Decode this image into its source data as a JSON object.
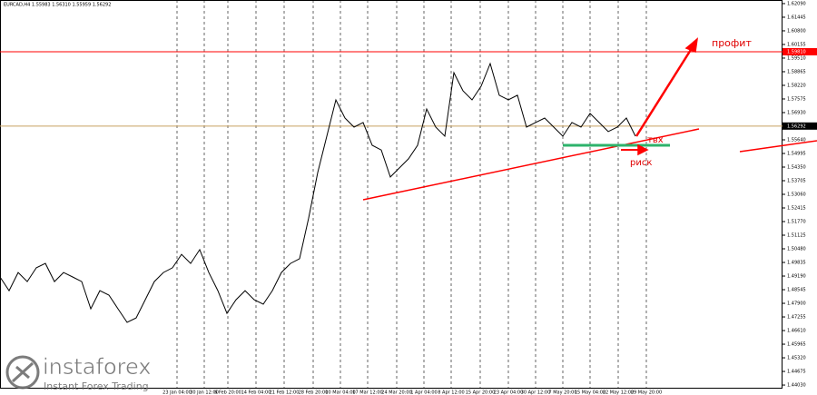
{
  "chart_data": {
    "type": "line",
    "title": "EURCAD,H4  1.55983 1.56310 1.55959 1.56292",
    "x": [
      0,
      1,
      2,
      3,
      4,
      5,
      6,
      7,
      8,
      9,
      10,
      11,
      12,
      13,
      14,
      15,
      16,
      17,
      18,
      19,
      20,
      21,
      22,
      23,
      24,
      25,
      26,
      27,
      28,
      29,
      30,
      31,
      32,
      33,
      34,
      35,
      36,
      37,
      38,
      39,
      40,
      41,
      42,
      43,
      44,
      45,
      46,
      47,
      48,
      49,
      50,
      51,
      52,
      53,
      54,
      55,
      56,
      57,
      58,
      59,
      60,
      61,
      62,
      63,
      64,
      65,
      66,
      67,
      68,
      69,
      70
    ],
    "values": [
      1.4915,
      1.485,
      1.4936,
      1.4893,
      1.4958,
      1.4979,
      1.4893,
      1.4936,
      1.4915,
      1.4893,
      1.4764,
      1.485,
      1.4829,
      1.4764,
      1.47,
      1.4721,
      1.4807,
      1.4893,
      1.4936,
      1.4958,
      1.5022,
      1.4979,
      1.5044,
      1.4936,
      1.485,
      1.4743,
      1.4807,
      1.485,
      1.4807,
      1.4786,
      1.485,
      1.4936,
      1.4979,
      1.5001,
      1.5194,
      1.5409,
      1.5581,
      1.5753,
      1.5667,
      1.5624,
      1.5646,
      1.5538,
      1.5516,
      1.5388,
      1.5431,
      1.5474,
      1.5538,
      1.571,
      1.5624,
      1.5581,
      1.5882,
      1.5796,
      1.5753,
      1.5818,
      1.5925,
      1.5775,
      1.5753,
      1.5775,
      1.5624,
      1.5646,
      1.5667,
      1.5624,
      1.5581,
      1.5646,
      1.5624,
      1.5689,
      1.5646,
      1.5603,
      1.5624,
      1.5667,
      1.5581
    ],
    "color": "#000000",
    "xlim": [
      0,
      86.2
    ],
    "xticks": [
      {
        "value": 19.5,
        "label": "23 Jan 04:00"
      },
      {
        "value": 22.5,
        "label": "30 Jan 12:00"
      },
      {
        "value": 25.1,
        "label": "6 Feb 20:00"
      },
      {
        "value": 28.2,
        "label": "14 Feb 04:00"
      },
      {
        "value": 31.3,
        "label": "21 Feb 12:00"
      },
      {
        "value": 34.5,
        "label": "28 Feb 20:00"
      },
      {
        "value": 37.5,
        "label": "10 Mar 04:00"
      },
      {
        "value": 40.5,
        "label": "17 Mar 12:00"
      },
      {
        "value": 43.7,
        "label": "24 Mar 20:00"
      },
      {
        "value": 46.7,
        "label": "1 Apr 04:00"
      },
      {
        "value": 49.7,
        "label": "8 Apr 12:00"
      },
      {
        "value": 52.9,
        "label": "15 Apr 20:00"
      },
      {
        "value": 56,
        "label": "23 Apr 04:00"
      },
      {
        "value": 59,
        "label": "30 Apr 12:00"
      },
      {
        "value": 62,
        "label": "7 May 20:00"
      },
      {
        "value": 65,
        "label": "15 May 04:00"
      },
      {
        "value": 68.1,
        "label": "22 May 12:00"
      },
      {
        "value": 71.2,
        "label": "29 May 20:00"
      }
    ],
    "ylim": [
      1.4386,
      1.6226
    ],
    "yticks": [
      {
        "value": 1.6209,
        "label": "1.62090"
      },
      {
        "value": 1.61445,
        "label": "1.61445"
      },
      {
        "value": 1.608,
        "label": "1.60800"
      },
      {
        "value": 1.60155,
        "label": "1.60155"
      },
      {
        "value": 1.5951,
        "label": "1.59510"
      },
      {
        "value": 1.58865,
        "label": "1.58865"
      },
      {
        "value": 1.5822,
        "label": "1.58220"
      },
      {
        "value": 1.57575,
        "label": "1.57575"
      },
      {
        "value": 1.5693,
        "label": "1.56930"
      },
      {
        "value": 1.5564,
        "label": "1.55640"
      },
      {
        "value": 1.54995,
        "label": "1.54995"
      },
      {
        "value": 1.5435,
        "label": "1.54350"
      },
      {
        "value": 1.53705,
        "label": "1.53705"
      },
      {
        "value": 1.5306,
        "label": "1.53060"
      },
      {
        "value": 1.52415,
        "label": "1.52415"
      },
      {
        "value": 1.5177,
        "label": "1.51770"
      },
      {
        "value": 1.51125,
        "label": "1.51125"
      },
      {
        "value": 1.5048,
        "label": "1.50480"
      },
      {
        "value": 1.49835,
        "label": "1.49835"
      },
      {
        "value": 1.4919,
        "label": "1.49190"
      },
      {
        "value": 1.48545,
        "label": "1.48545"
      },
      {
        "value": 1.479,
        "label": "1.47900"
      },
      {
        "value": 1.47255,
        "label": "1.47255"
      },
      {
        "value": 1.4661,
        "label": "1.46610"
      },
      {
        "value": 1.45965,
        "label": "1.45965"
      },
      {
        "value": 1.4532,
        "label": "1.45320"
      },
      {
        "value": 1.44675,
        "label": "1.44675"
      },
      {
        "value": 1.4403,
        "label": "1.44030"
      }
    ],
    "levels": [
      {
        "value": 1.5981,
        "label": "1.59810",
        "color": "#ff0000",
        "box": "#ff0000"
      },
      {
        "value": 1.56292,
        "label": "1.56292",
        "color": "#c8a060",
        "box": "#000000"
      }
    ],
    "grid": true,
    "annotations": {
      "profit": "профит",
      "entry": "твх",
      "risk": "риск"
    },
    "watermark": {
      "brand": "instaforex",
      "tagline": "Instant Forex Trading"
    }
  }
}
